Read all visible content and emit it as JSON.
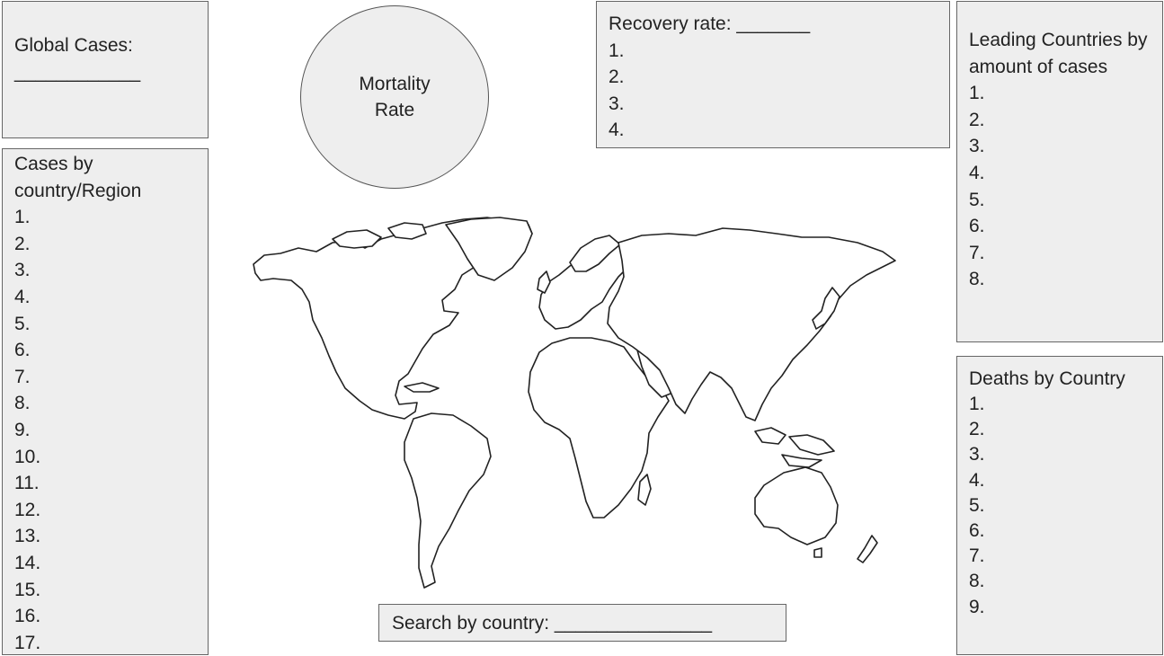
{
  "global_cases": {
    "label": "Global Cases:",
    "blank": "____________"
  },
  "mortality": {
    "label": "Mortality Rate"
  },
  "recovery": {
    "title": "Recovery rate: _______",
    "items": [
      "1.",
      "2.",
      "3.",
      "4."
    ]
  },
  "leading": {
    "title": "Leading Countries by amount of cases",
    "items": [
      "1.",
      "2.",
      "3.",
      "4.",
      "5.",
      "6.",
      "7.",
      "8."
    ]
  },
  "cases_region": {
    "title": "Cases by country/Region",
    "items": [
      "1.",
      "2.",
      "3.",
      "4.",
      "5.",
      "6.",
      "7.",
      "8.",
      "9.",
      "10.",
      "11.",
      "12.",
      "13.",
      "14.",
      "15.",
      "16.",
      "17."
    ]
  },
  "deaths": {
    "title": "Deaths by Country",
    "items": [
      "1.",
      "2.",
      "3.",
      "4.",
      "5.",
      "6.",
      "7.",
      "8.",
      "9."
    ]
  },
  "search": {
    "label": "Search by country: _______________"
  },
  "map": {
    "icon": "world-map-outline"
  }
}
